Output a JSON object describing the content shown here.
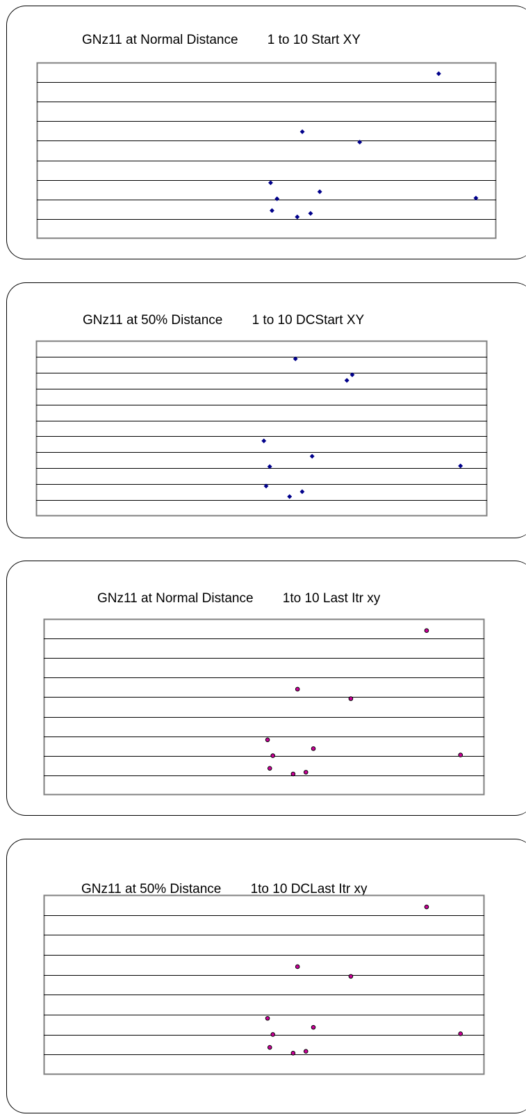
{
  "colors": {
    "start_marker": "#00008B",
    "last_marker": "#CC0099",
    "last_marker_edge": "#000000",
    "gridline": "#000000",
    "plot_border": "#808080"
  },
  "chart_data": [
    {
      "type": "scatter",
      "title": "GNz11 at Normal Distance        1 to 10 Start XY",
      "marker": "diamond",
      "grid": true,
      "gridlines": 8,
      "xlim": [
        0,
        100
      ],
      "ylim": [
        0,
        100
      ],
      "points": [
        {
          "x": 87.5,
          "y": 93.7
        },
        {
          "x": 57.8,
          "y": 60.7
        },
        {
          "x": 70.3,
          "y": 54.8
        },
        {
          "x": 50.9,
          "y": 31.7
        },
        {
          "x": 61.6,
          "y": 26.6
        },
        {
          "x": 52.3,
          "y": 22.6
        },
        {
          "x": 95.6,
          "y": 23.0
        },
        {
          "x": 51.2,
          "y": 15.9
        },
        {
          "x": 56.7,
          "y": 12.3
        },
        {
          "x": 59.6,
          "y": 14.3
        }
      ]
    },
    {
      "type": "scatter",
      "title": "GNz11 at 50% Distance        1 to 10 DCStart XY",
      "marker": "diamond",
      "grid": true,
      "gridlines": 10,
      "xlim": [
        0,
        100
      ],
      "ylim": [
        0,
        100
      ],
      "points": [
        {
          "x": 57.5,
          "y": 89.7
        },
        {
          "x": 68.9,
          "y": 77.4
        },
        {
          "x": 70.1,
          "y": 80.6
        },
        {
          "x": 50.5,
          "y": 42.9
        },
        {
          "x": 61.2,
          "y": 34.1
        },
        {
          "x": 51.8,
          "y": 28.2
        },
        {
          "x": 94.1,
          "y": 28.6
        },
        {
          "x": 51.0,
          "y": 17.1
        },
        {
          "x": 56.2,
          "y": 11.1
        },
        {
          "x": 59.0,
          "y": 13.9
        }
      ]
    },
    {
      "type": "scatter",
      "title": "GNz11 at Normal Distance        1to 10 Last Itr xy",
      "marker": "circle",
      "grid": true,
      "gridlines": 8,
      "xlim": [
        0,
        100
      ],
      "ylim": [
        0,
        100
      ],
      "points": [
        {
          "x": 86.9,
          "y": 93.4
        },
        {
          "x": 57.6,
          "y": 60.1
        },
        {
          "x": 69.7,
          "y": 54.7
        },
        {
          "x": 50.8,
          "y": 31.3
        },
        {
          "x": 61.2,
          "y": 26.3
        },
        {
          "x": 52.0,
          "y": 22.3
        },
        {
          "x": 94.6,
          "y": 22.7
        },
        {
          "x": 51.3,
          "y": 15.1
        },
        {
          "x": 56.6,
          "y": 11.9
        },
        {
          "x": 59.5,
          "y": 12.9
        }
      ]
    },
    {
      "type": "scatter",
      "title": "GNz11 at 50% Distance        1to 10 DCLast Itr xy",
      "marker": "circle",
      "grid": true,
      "gridlines": 8,
      "xlim": [
        0,
        100
      ],
      "ylim": [
        0,
        100
      ],
      "points": [
        {
          "x": 86.9,
          "y": 93.4
        },
        {
          "x": 57.6,
          "y": 60.1
        },
        {
          "x": 69.7,
          "y": 54.7
        },
        {
          "x": 50.8,
          "y": 31.3
        },
        {
          "x": 61.2,
          "y": 26.3
        },
        {
          "x": 52.0,
          "y": 22.3
        },
        {
          "x": 94.6,
          "y": 22.7
        },
        {
          "x": 51.3,
          "y": 15.1
        },
        {
          "x": 56.6,
          "y": 11.9
        },
        {
          "x": 59.5,
          "y": 12.9
        }
      ]
    }
  ]
}
